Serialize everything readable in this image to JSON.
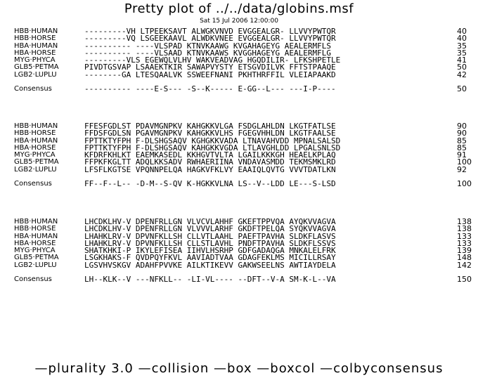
{
  "title": "Pretty plot of ../../data/globins.msf",
  "date": "Sat 15 Jul 2006 12:00:00",
  "footer": "—plurality 3.0 —collision —box —boxcol —colbyconsensus",
  "blocks": [
    {
      "rows": [
        {
          "name": "HBB·HUMAN",
          "seq": "---------VH LTPEEKSAVT ALWGKVNVD EVGGEALGR- LLVVYPWTQR",
          "num": "40"
        },
        {
          "name": "HBB·HORSE",
          "seq": "---------VQ LSGEEKAAVL ALWDKVNEE EVGGEALGR- LLVVYPWTQR",
          "num": "40"
        },
        {
          "name": "HBA·HUMAN",
          "seq": "---------- ----VLSPAD KTNVKAAWG KVGAHAGEYG AEALERMFLS",
          "num": "35"
        },
        {
          "name": "HBA·HORSE",
          "seq": "---------- ----VLSAAD KTNVKAAWS KVGGHAGEYG AEALERMFLG",
          "num": "35"
        },
        {
          "name": "MYG·PHYCA",
          "seq": "---------VLS EGEWQLVLHV WAKVEADVAG HGQDILIR- LFKSHPETLE",
          "num": "41"
        },
        {
          "name": "GLB5·PETMA",
          "seq": "PIVDTGSVAP LSAAEKTKIR SAWAPVYSTY ETSGVDILVK FFTSTPAAQE",
          "num": "50"
        },
        {
          "name": "LGB2·LUPLU",
          "seq": "--------GA LTESQAALVK SSWEEFNANI PKHTHRFFIL VLEIAPAAKD",
          "num": "42"
        }
      ],
      "consensus": {
        "name": "Consensus",
        "seq": "---------- ----E-S--- -S--K----- E-GG--L--- ---I-P----",
        "num": "50"
      }
    },
    {
      "rows": [
        {
          "name": "HBB·HUMAN",
          "seq": "FFESFGDLST PDAVMGNPKV KAHGKKVLGA FSDGLAHLDN LKGTFATLSE",
          "num": "90"
        },
        {
          "name": "HBB·HORSE",
          "seq": "FFDSFGDLSN PGAVMGNPKV KAHGKKVLHS FGEGVHHLDN LKGTFAALSE",
          "num": "90"
        },
        {
          "name": "HBA·HUMAN",
          "seq": "FPTTKTYFPH F-DLSHGSAQV KGHGKKVADA LTNAVAHVDD MPNALSALSD",
          "num": "85"
        },
        {
          "name": "HBA·HORSE",
          "seq": "FPTTKTYFPH F-DLSHGSAQV KAHGKKVGDA LTLAVGHLDD LPGALSNLSD",
          "num": "85"
        },
        {
          "name": "MYG·PHYCA",
          "seq": "KFDRFKHLKT EAEMKASEDL KKHGVTVLTA LGAILKKKGH HEAELKPLAQ",
          "num": "91"
        },
        {
          "name": "GLB5·PETMA",
          "seq": "FFPKFKGLTT ADQLKKSADV RWHAERIINA VNDAVASMDD TEKMSMKLRD",
          "num": "100"
        },
        {
          "name": "LGB2·LUPLU",
          "seq": "LFSFLKGTSE VPQNNPELQA HAGKVFKLVY EAAIQLQVTG VVVTDATLKN",
          "num": "92"
        }
      ],
      "consensus": {
        "name": "Consensus",
        "seq": "FF--F--L-- -D-M--S-QV K-HGKKVLNA LS--V--LDD LE---S-LSD",
        "num": "100"
      }
    },
    {
      "rows": [
        {
          "name": "HBB·HUMAN",
          "seq": "LHCDKLHV-V DPENFRLLGN VLVCVLAHHF GKEFTPPVQA AYQKVVAGVA",
          "num": "138"
        },
        {
          "name": "HBB·HORSE",
          "seq": "LHCDKLHV-V DPENFRLLGN VLVVVLARHF GKDFTPELQA SYQKVVAGVA",
          "num": "138"
        },
        {
          "name": "HBA·HUMAN",
          "seq": "LHAHKLRV-V DPVNFKLLSH CLLVTLAAHL PAEFTPAVHA SLDKFLASVS",
          "num": "133"
        },
        {
          "name": "HBA·HORSE",
          "seq": "LHAHKLRV-V DPVNFKLLSH CLLSTLAVHL PNDFTPAVHA SLDKFLSSVS",
          "num": "133"
        },
        {
          "name": "MYG·PHYCA",
          "seq": "SHATKHKI-P IKYLEFISEA IIHVLHSRHP GDFGADAQGA MNKALELFRK",
          "num": "139"
        },
        {
          "name": "GLB5·PETMA",
          "seq": "LSGKHAKS-F QVDPQYFKVL AAVIADTVAA GDAGFEKLMS MICILLRSAY",
          "num": "148"
        },
        {
          "name": "LGB2·LUPLU",
          "seq": "LGSVHVSKGV ADAHFPVVKE AILKTIKEVV GAKWSEELNS AWTIAYDELA",
          "num": "142"
        }
      ],
      "consensus": {
        "name": "Consensus",
        "seq": "LH--KLK--V ---NFKLL-- -LI-VL---- --DFT--V-A SM-K-L--VA",
        "num": "150"
      }
    }
  ]
}
